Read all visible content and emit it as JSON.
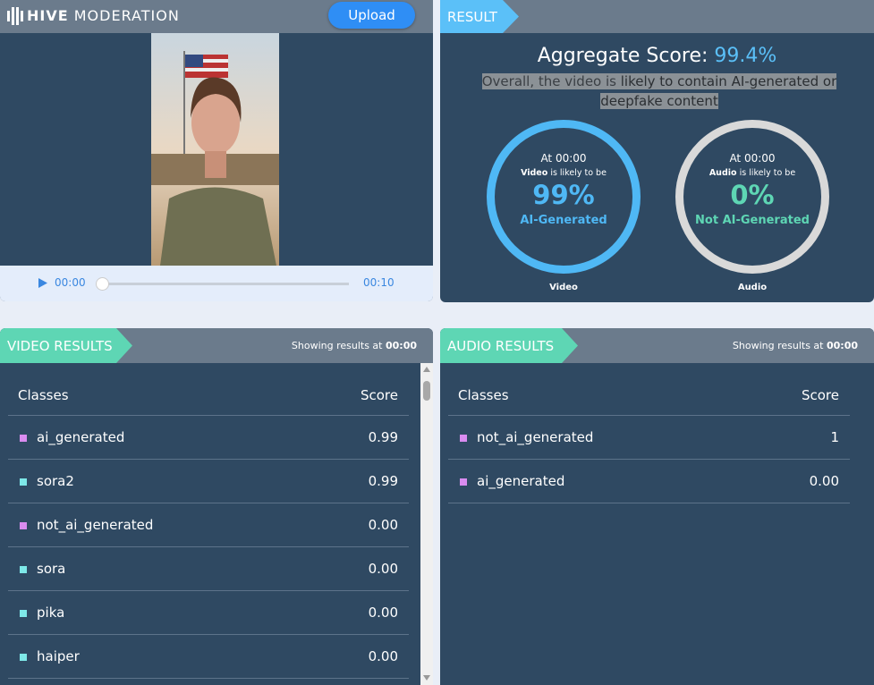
{
  "header": {
    "brand_bold": "HIVE",
    "brand": "MODERATION",
    "upload": "Upload"
  },
  "player": {
    "current": "00:00",
    "duration": "00:10"
  },
  "result": {
    "tab": "RESULT",
    "aggregate_label": "Aggregate Score:",
    "aggregate_value": "99.4%",
    "summary_prefix": "Overall, the video is",
    "summary_emphasis": "likely to contain AI-generated or deepfake content",
    "gauges": [
      {
        "at": "At 00:00",
        "subject": "Video",
        "likely": "is likely to be",
        "value": "99%",
        "verdict": "AI-Generated",
        "caption": "Video",
        "color": "#4fb8f5",
        "ring_color": "#4fb8f5"
      },
      {
        "at": "At 00:00",
        "subject": "Audio",
        "likely": "is likely to be",
        "value": "0%",
        "verdict": "Not AI-Generated",
        "caption": "Audio",
        "color": "#5ed6b4",
        "ring_color": "#d9d9d9"
      }
    ]
  },
  "video_results": {
    "tab": "VIDEO RESULTS",
    "showing": "Showing results at",
    "time": "00:00",
    "columns": [
      "Classes",
      "Score"
    ],
    "rows": [
      {
        "class": "ai_generated",
        "score": "0.99",
        "color": "#d98cf0"
      },
      {
        "class": "sora2",
        "score": "0.99",
        "color": "#7ee8e8"
      },
      {
        "class": "not_ai_generated",
        "score": "0.00",
        "color": "#d98cf0"
      },
      {
        "class": "sora",
        "score": "0.00",
        "color": "#7ee8e8"
      },
      {
        "class": "pika",
        "score": "0.00",
        "color": "#7ee8e8"
      },
      {
        "class": "haiper",
        "score": "0.00",
        "color": "#7ee8e8"
      }
    ]
  },
  "audio_results": {
    "tab": "AUDIO RESULTS",
    "showing": "Showing results at",
    "time": "00:00",
    "columns": [
      "Classes",
      "Score"
    ],
    "rows": [
      {
        "class": "not_ai_generated",
        "score": "1",
        "color": "#d98cf0"
      },
      {
        "class": "ai_generated",
        "score": "0.00",
        "color": "#d98cf0"
      }
    ]
  }
}
